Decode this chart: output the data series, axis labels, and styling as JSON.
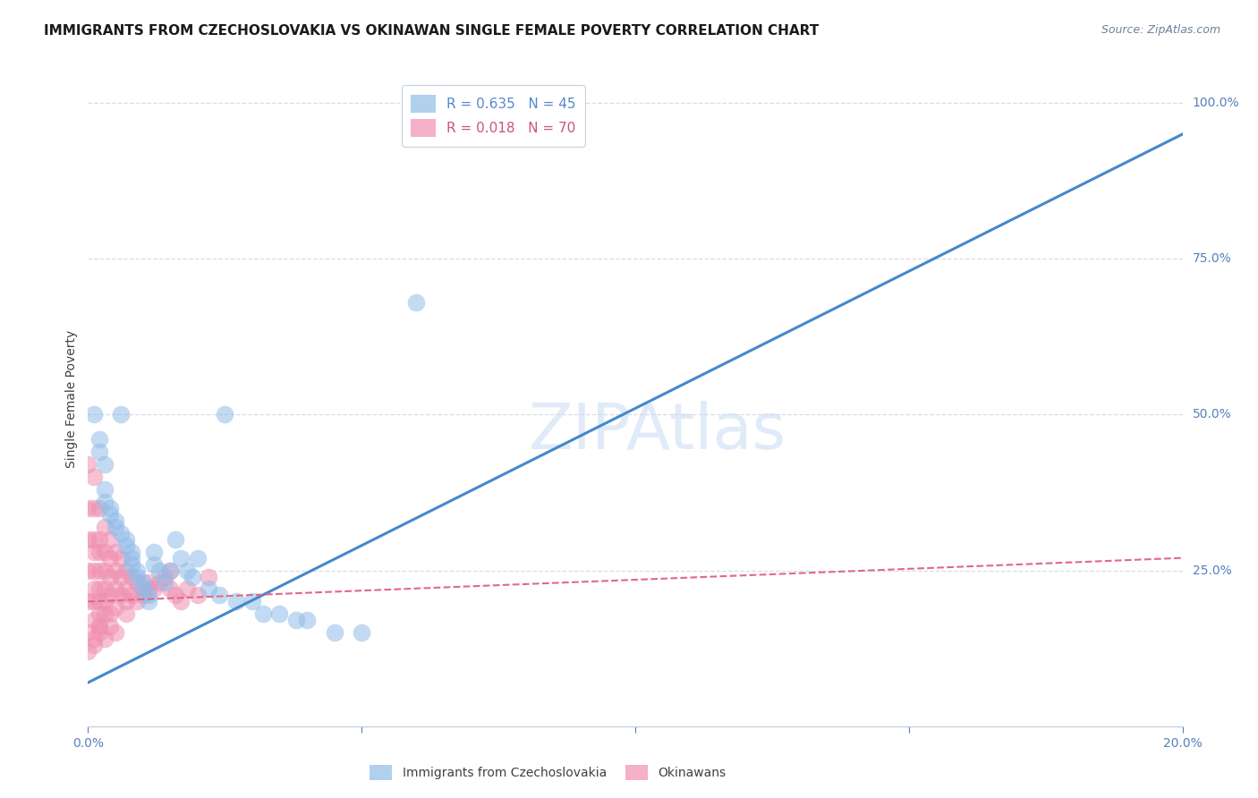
{
  "title": "IMMIGRANTS FROM CZECHOSLOVAKIA VS OKINAWAN SINGLE FEMALE POVERTY CORRELATION CHART",
  "source": "Source: ZipAtlas.com",
  "ylabel": "Single Female Poverty",
  "xlim": [
    0.0,
    0.2
  ],
  "ylim": [
    0.0,
    1.05
  ],
  "y_ticks_right": [
    0.25,
    0.5,
    0.75,
    1.0
  ],
  "y_tick_labels_right": [
    "25.0%",
    "50.0%",
    "75.0%",
    "100.0%"
  ],
  "watermark": "ZIPAtlas",
  "blue_color": "#90bce8",
  "pink_color": "#f090b0",
  "blue_line_color": "#4488cc",
  "pink_line_color": "#e06888",
  "background_color": "#ffffff",
  "grid_color": "#d8dce8",
  "blue_scatter_x": [
    0.001,
    0.002,
    0.002,
    0.003,
    0.003,
    0.003,
    0.004,
    0.004,
    0.005,
    0.005,
    0.006,
    0.006,
    0.007,
    0.007,
    0.008,
    0.008,
    0.008,
    0.009,
    0.009,
    0.01,
    0.01,
    0.011,
    0.011,
    0.012,
    0.012,
    0.013,
    0.014,
    0.015,
    0.016,
    0.017,
    0.018,
    0.019,
    0.02,
    0.022,
    0.024,
    0.025,
    0.027,
    0.03,
    0.032,
    0.035,
    0.038,
    0.04,
    0.045,
    0.05,
    0.06
  ],
  "blue_scatter_y": [
    0.5,
    0.46,
    0.44,
    0.42,
    0.38,
    0.36,
    0.35,
    0.34,
    0.33,
    0.32,
    0.31,
    0.5,
    0.3,
    0.29,
    0.28,
    0.27,
    0.26,
    0.25,
    0.24,
    0.23,
    0.22,
    0.21,
    0.2,
    0.28,
    0.26,
    0.25,
    0.23,
    0.25,
    0.3,
    0.27,
    0.25,
    0.24,
    0.27,
    0.22,
    0.21,
    0.5,
    0.2,
    0.2,
    0.18,
    0.18,
    0.17,
    0.17,
    0.15,
    0.15,
    0.68
  ],
  "pink_scatter_x": [
    0.0,
    0.0,
    0.0,
    0.0,
    0.0,
    0.001,
    0.001,
    0.001,
    0.001,
    0.001,
    0.001,
    0.001,
    0.001,
    0.002,
    0.002,
    0.002,
    0.002,
    0.002,
    0.002,
    0.002,
    0.002,
    0.003,
    0.003,
    0.003,
    0.003,
    0.003,
    0.003,
    0.004,
    0.004,
    0.004,
    0.004,
    0.004,
    0.005,
    0.005,
    0.005,
    0.005,
    0.006,
    0.006,
    0.006,
    0.007,
    0.007,
    0.007,
    0.008,
    0.008,
    0.009,
    0.009,
    0.01,
    0.01,
    0.011,
    0.011,
    0.012,
    0.013,
    0.014,
    0.015,
    0.015,
    0.016,
    0.017,
    0.018,
    0.02,
    0.022,
    0.0,
    0.0,
    0.001,
    0.001,
    0.002,
    0.002,
    0.003,
    0.004,
    0.005,
    0.007
  ],
  "pink_scatter_y": [
    0.42,
    0.35,
    0.3,
    0.25,
    0.2,
    0.4,
    0.35,
    0.3,
    0.28,
    0.25,
    0.22,
    0.2,
    0.17,
    0.35,
    0.3,
    0.28,
    0.25,
    0.22,
    0.2,
    0.18,
    0.16,
    0.32,
    0.28,
    0.25,
    0.22,
    0.2,
    0.18,
    0.3,
    0.27,
    0.24,
    0.21,
    0.18,
    0.28,
    0.25,
    0.22,
    0.19,
    0.27,
    0.24,
    0.21,
    0.25,
    0.22,
    0.2,
    0.24,
    0.21,
    0.23,
    0.2,
    0.22,
    0.21,
    0.22,
    0.23,
    0.22,
    0.23,
    0.24,
    0.25,
    0.22,
    0.21,
    0.2,
    0.22,
    0.21,
    0.24,
    0.15,
    0.12,
    0.14,
    0.13,
    0.16,
    0.15,
    0.14,
    0.16,
    0.15,
    0.18
  ],
  "blue_trendline_x": [
    0.0,
    0.2
  ],
  "blue_trendline_y": [
    0.07,
    0.95
  ],
  "pink_trendline_x": [
    0.0,
    0.2
  ],
  "pink_trendline_y": [
    0.2,
    0.27
  ],
  "legend_blue_label": "R = 0.635   N = 45",
  "legend_pink_label": "R = 0.018   N = 70",
  "legend_blue_label_color": "#5588cc",
  "legend_pink_label_color": "#cc5577",
  "legend_n_blue_color": "#5588cc",
  "legend_n_pink_color": "#cc5577",
  "bottom_legend_blue": "Immigrants from Czechoslovakia",
  "bottom_legend_pink": "Okinawans",
  "title_fontsize": 11,
  "source_fontsize": 9,
  "axis_label_fontsize": 10,
  "tick_fontsize": 10,
  "legend_fontsize": 11,
  "watermark_fontsize": 52,
  "watermark_color": "#ccddf5",
  "watermark_alpha": 0.6
}
